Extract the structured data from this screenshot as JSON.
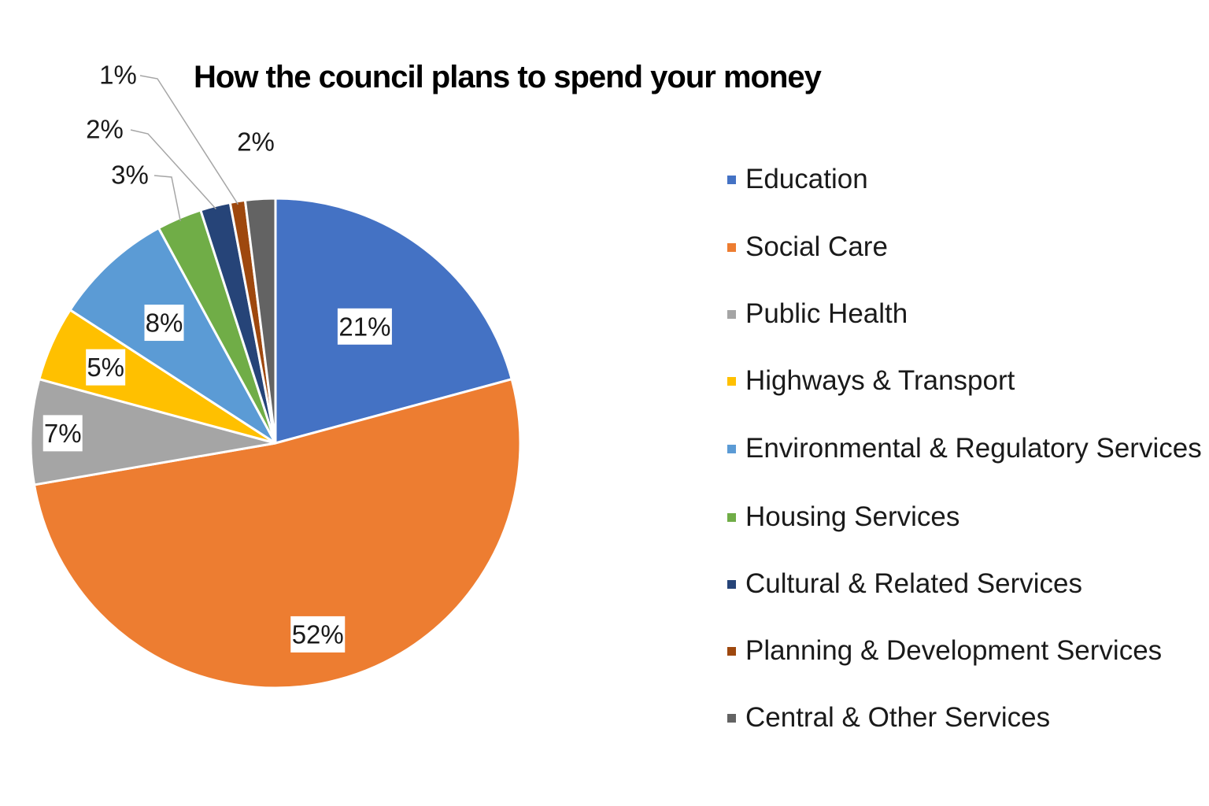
{
  "chart_data": {
    "type": "pie",
    "title": "How the council plans to spend your money",
    "start_angle_deg": 0,
    "direction": "clockwise",
    "categories": [
      "Education",
      "Social Care",
      "Public Health",
      "Highways & Transport",
      "Environmental & Regulatory Services",
      "Housing Services",
      "Cultural & Related Services",
      "Planning & Development Services",
      "Central & Other Services"
    ],
    "values": [
      21,
      52,
      7,
      5,
      8,
      3,
      2,
      1,
      2
    ],
    "data_labels": [
      "21%",
      "52%",
      "7%",
      "5%",
      "8%",
      "3%",
      "2%",
      "1%",
      "2%"
    ],
    "colors": [
      "#4472C4",
      "#ED7D31",
      "#A5A5A5",
      "#FFC000",
      "#5B9BD5",
      "#70AD47",
      "#264478",
      "#9E480E",
      "#636363"
    ],
    "legend_position": "right"
  }
}
